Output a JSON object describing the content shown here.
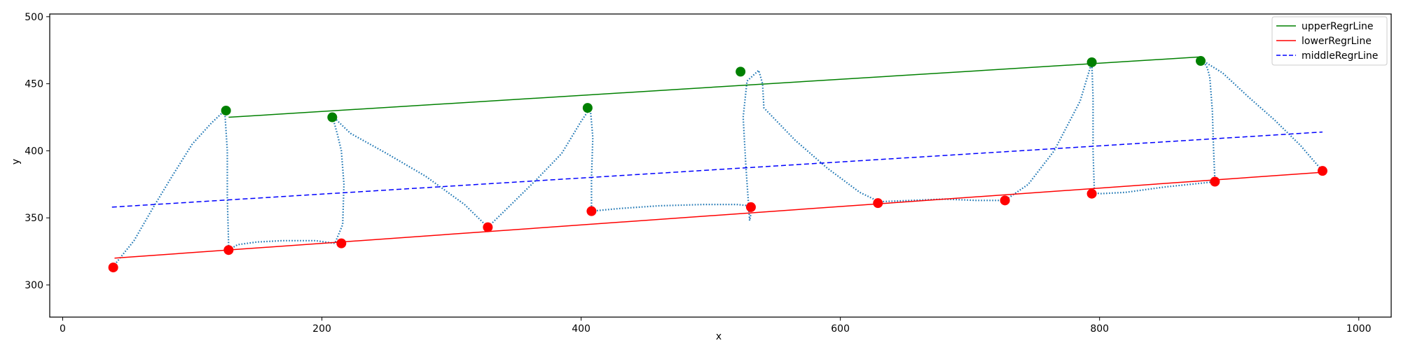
{
  "chart_data": {
    "type": "line",
    "title": "",
    "xlabel": "x",
    "ylabel": "y",
    "xlim": [
      -10,
      1025
    ],
    "ylim": [
      276,
      502
    ],
    "xticks": [
      0,
      200,
      400,
      600,
      800,
      1000
    ],
    "yticks": [
      300,
      350,
      400,
      450,
      500
    ],
    "grid": false,
    "legend_position": "top-right",
    "series": [
      {
        "name": "upperRegrLine",
        "kind": "line",
        "color": "#008000",
        "dash": "solid",
        "x": [
          128,
          878
        ],
        "y": [
          425,
          470
        ]
      },
      {
        "name": "lowerRegrLine",
        "kind": "line",
        "color": "#ff0000",
        "dash": "solid",
        "x": [
          40,
          972
        ],
        "y": [
          320,
          384
        ]
      },
      {
        "name": "middleRegrLine",
        "kind": "line",
        "color": "#0000ff",
        "dash": "dashed",
        "x": [
          38,
          972
        ],
        "y": [
          358,
          414
        ]
      }
    ],
    "trace": {
      "kind": "dotted",
      "color": "#1f77b4",
      "x": [
        40,
        55,
        70,
        85,
        100,
        115,
        125,
        127,
        127,
        128,
        128,
        135,
        150,
        170,
        195,
        210,
        216,
        217,
        215,
        212,
        208,
        222,
        250,
        280,
        310,
        328,
        345,
        365,
        385,
        400,
        407,
        409,
        408,
        408,
        430,
        460,
        495,
        520,
        530,
        531,
        530,
        527,
        525,
        528,
        537,
        540,
        541,
        545,
        565,
        590,
        615,
        630,
        655,
        680,
        705,
        727,
        745,
        765,
        785,
        794,
        795,
        795,
        796,
        800,
        820,
        850,
        880,
        889,
        888,
        887,
        885,
        883,
        880,
        895,
        915,
        935,
        955,
        972
      ],
      "y": [
        315,
        333,
        358,
        382,
        405,
        421,
        430,
        400,
        365,
        331,
        326,
        330,
        332,
        333,
        333,
        331,
        345,
        375,
        400,
        412,
        426,
        413,
        398,
        381,
        360,
        343,
        359,
        378,
        398,
        422,
        432,
        410,
        380,
        355,
        357,
        359,
        360,
        360,
        359,
        353,
        348,
        390,
        425,
        452,
        460,
        450,
        432,
        428,
        408,
        387,
        369,
        362,
        363,
        364,
        363,
        363,
        375,
        400,
        437,
        466,
        440,
        400,
        369,
        368,
        369,
        373,
        376,
        377,
        400,
        430,
        455,
        462,
        467,
        458,
        440,
        423,
        404,
        385
      ],
      "draw_x": [
        1000,
        1000,
        1000,
        1000
      ],
      "draw_y": [
        1000,
        1000,
        1000,
        1000
      ]
    },
    "markers_upper": {
      "color": "#008000",
      "x": [
        126,
        208,
        405,
        523,
        794,
        878
      ],
      "y": [
        430,
        425,
        432,
        459,
        466,
        467
      ]
    },
    "markers_lower": {
      "color": "#ff0000",
      "x": [
        39,
        128,
        215,
        328,
        408,
        531,
        629,
        727,
        794,
        889,
        972
      ],
      "y": [
        313,
        326,
        331,
        343,
        355,
        358,
        361,
        363,
        368,
        377,
        385
      ]
    }
  }
}
